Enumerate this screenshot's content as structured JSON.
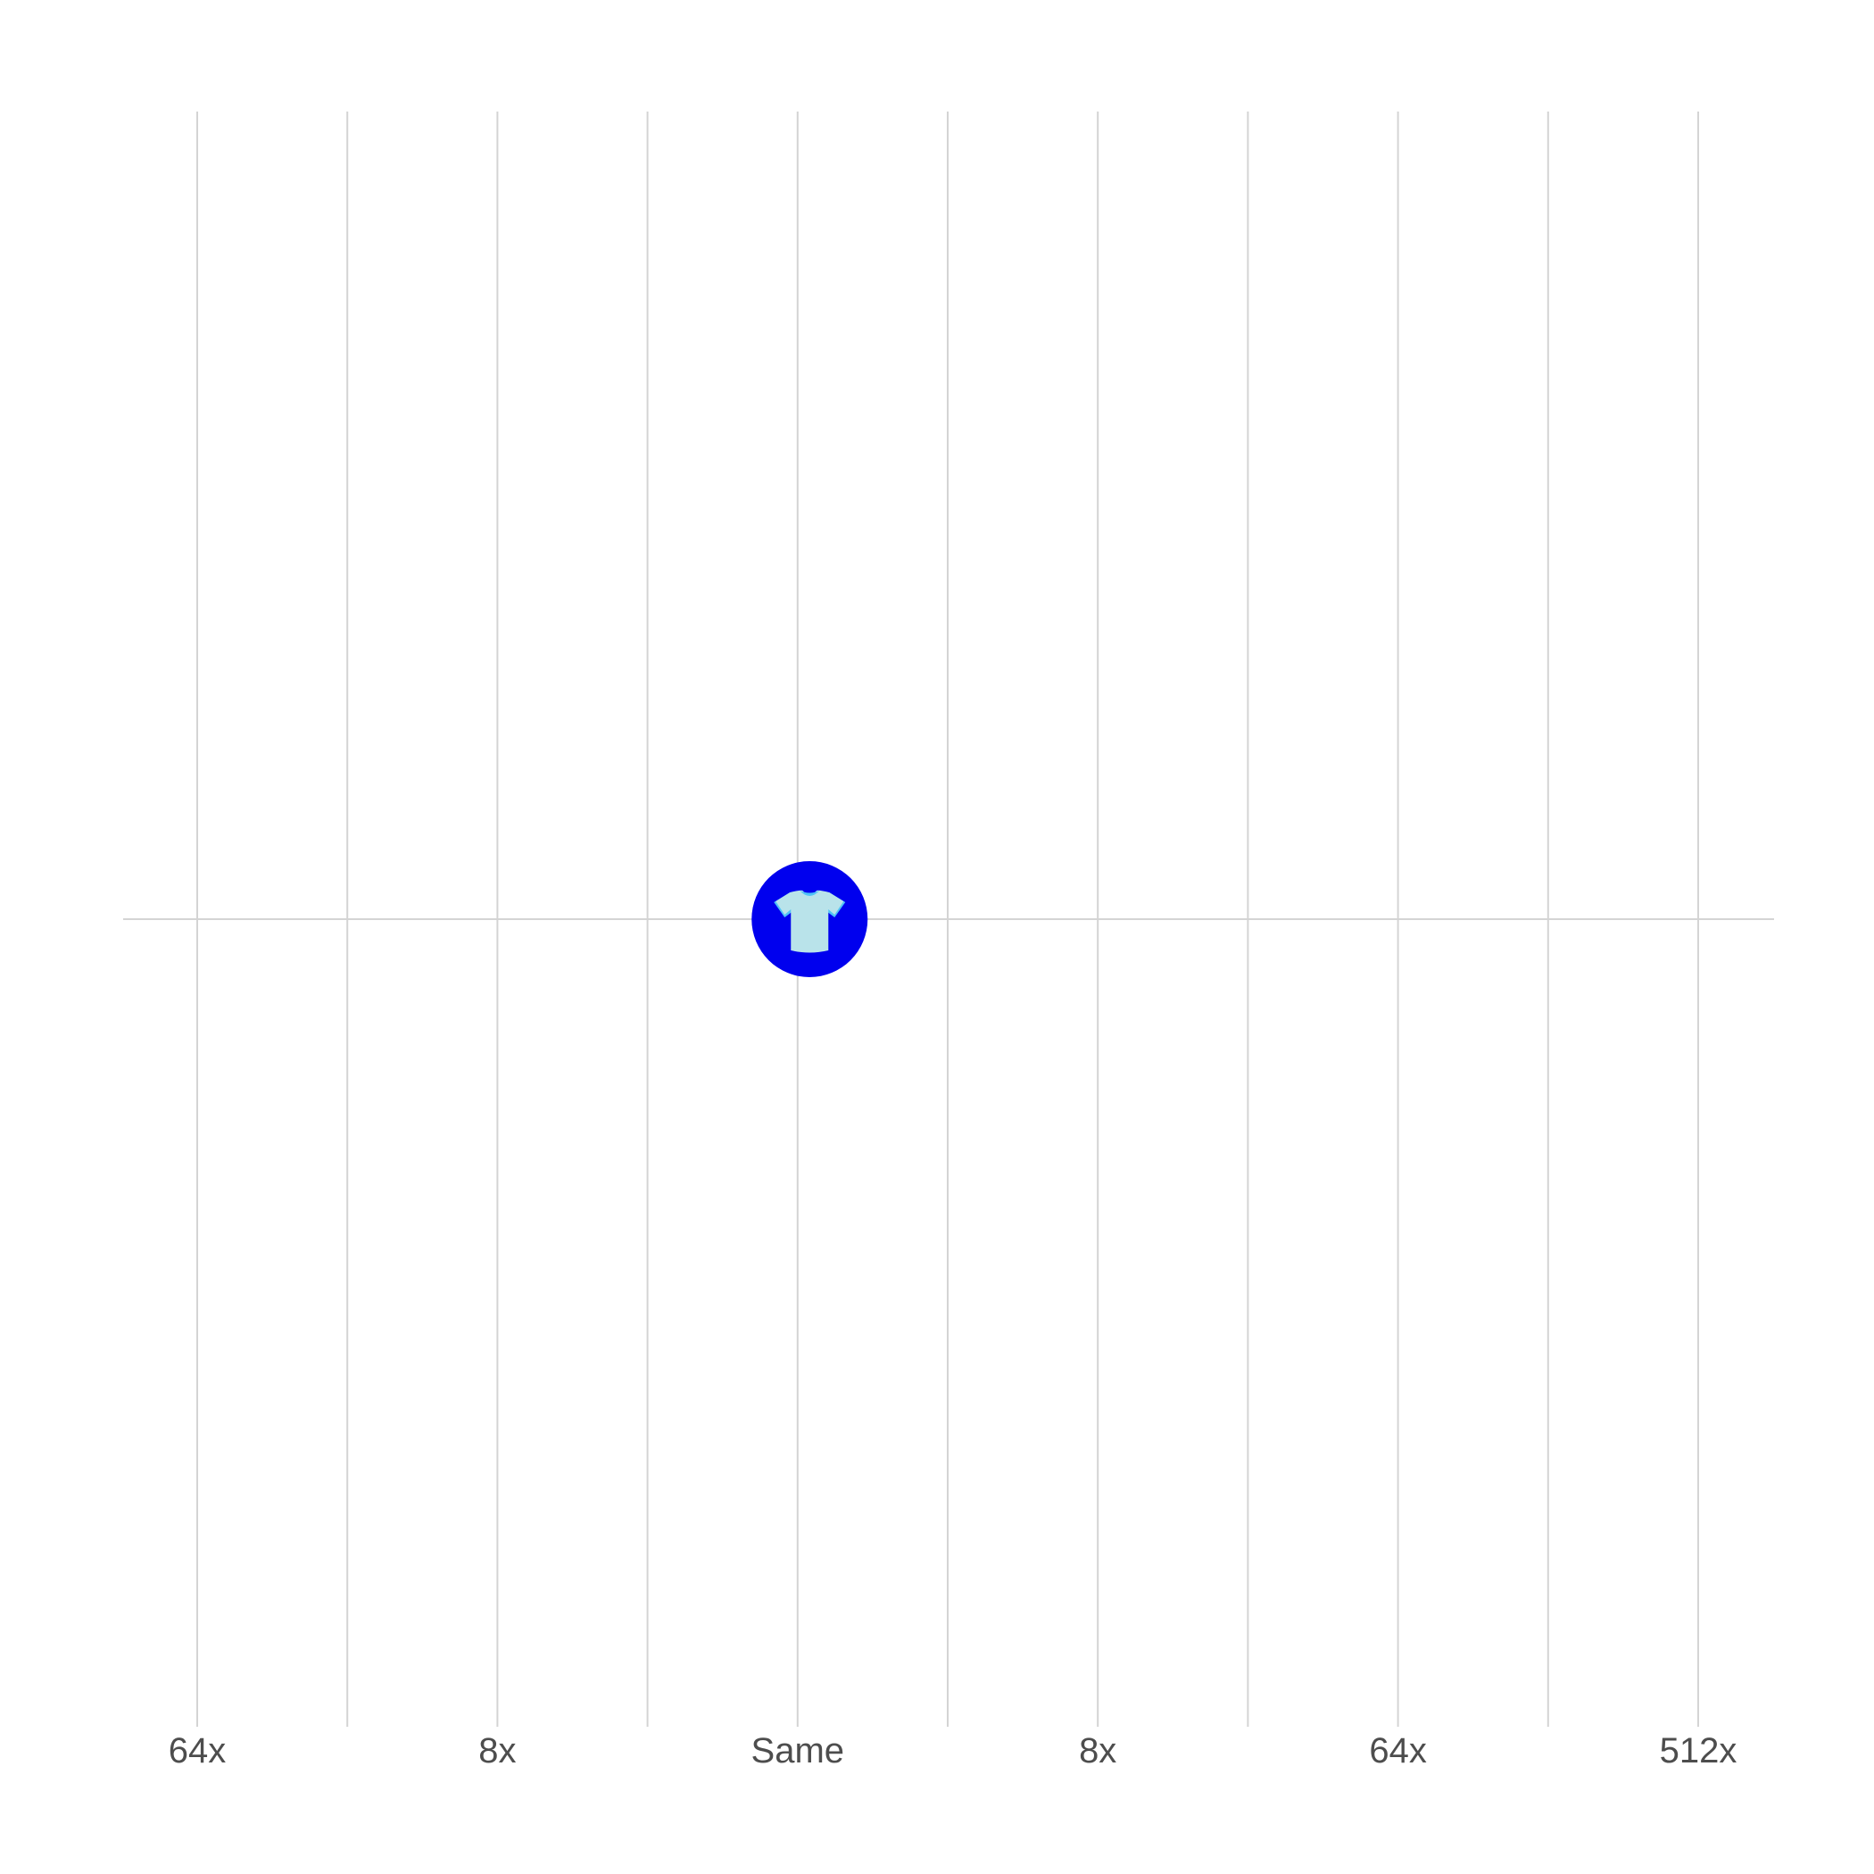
{
  "chart_data": {
    "type": "scatter",
    "title": "",
    "xlabel": "",
    "ylabel": "",
    "x_scale": "log2",
    "xlim": [
      -7,
      10
    ],
    "grid": true,
    "x_gridlines": [
      -6,
      -4.5,
      -3,
      -1.5,
      0,
      1.5,
      3,
      4.5,
      6,
      7.5,
      9
    ],
    "x_ticks": [
      {
        "value": -6,
        "label": "64x"
      },
      {
        "value": -3,
        "label": "8x"
      },
      {
        "value": 0,
        "label": "Same"
      },
      {
        "value": 3,
        "label": "8x"
      },
      {
        "value": 6,
        "label": "64x"
      },
      {
        "value": 9,
        "label": "512x"
      }
    ],
    "points": [
      {
        "x": 0.12,
        "y": 0,
        "icon": "t-shirt-icon",
        "color": "#0000ee"
      }
    ],
    "colors": {
      "marker_fill": "#0000ee",
      "icon_body": "#b9e3ea",
      "icon_trim": "#4fc3f7",
      "grid": "#d4d4d4",
      "tick_text": "#4d4d4d"
    }
  }
}
